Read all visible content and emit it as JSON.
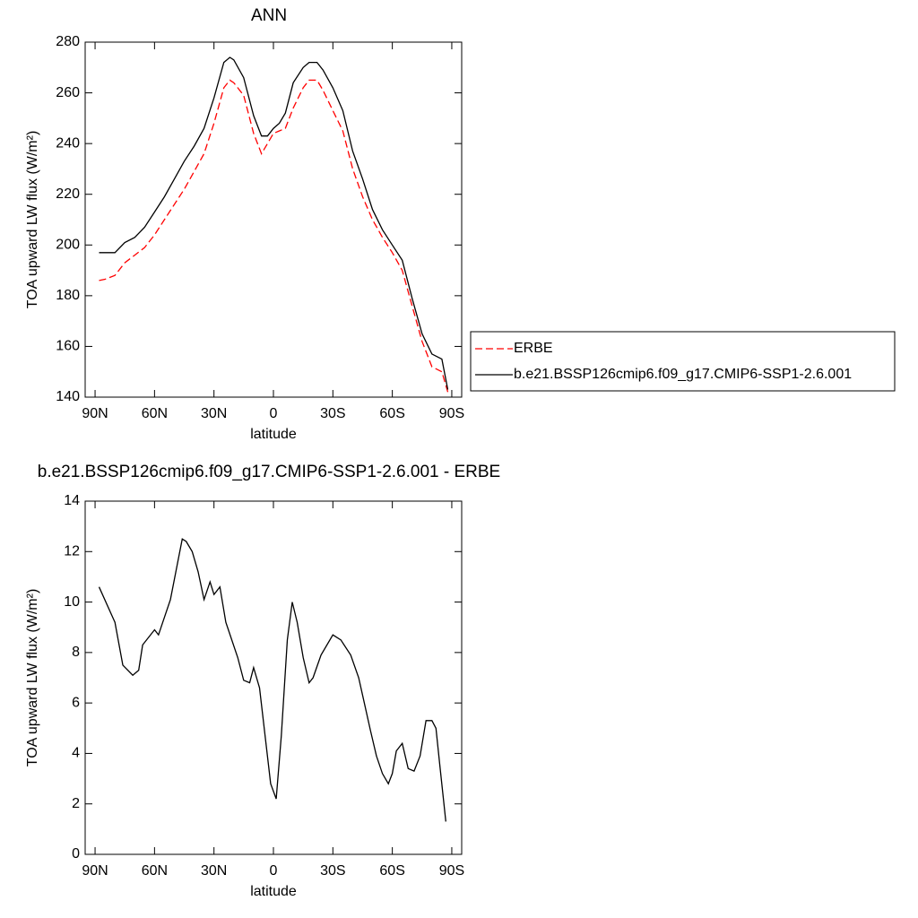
{
  "chart_data": [
    {
      "type": "line",
      "title": "ANN",
      "xlabel": "latitude",
      "ylabel": "TOA upward LW flux (W/m²)",
      "x": [
        88,
        85,
        80,
        75,
        70,
        65,
        60,
        55,
        50,
        45,
        40,
        35,
        30,
        25,
        22,
        20,
        15,
        10,
        6,
        3,
        0,
        -3,
        -6,
        -10,
        -15,
        -18,
        -22,
        -25,
        -30,
        -35,
        -40,
        -45,
        -50,
        -55,
        -60,
        -65,
        -70,
        -75,
        -80,
        -85,
        -88
      ],
      "series": [
        {
          "name": "ERBE",
          "color": "#ff0000",
          "linestyle": "dashed",
          "values": [
            186,
            186.5,
            188,
            193,
            196,
            199,
            204,
            210,
            216,
            222,
            229,
            236,
            248,
            262,
            265,
            264,
            259,
            244,
            236,
            240,
            244,
            245,
            246,
            254,
            262,
            265,
            265,
            261,
            253,
            245,
            230,
            219,
            210,
            203,
            197,
            190,
            176,
            162,
            152,
            150,
            142
          ]
        },
        {
          "name": "b.e21.BSSP126cmip6.f09_g17.CMIP6-SSP1-2.6.001",
          "color": "#000000",
          "linestyle": "solid",
          "values": [
            197,
            197,
            197,
            201,
            203,
            207,
            213,
            219,
            226,
            233,
            239,
            246,
            258,
            272,
            274,
            273,
            266,
            251,
            243,
            243,
            246,
            248,
            252,
            264,
            270,
            272,
            272,
            269,
            262,
            253,
            237,
            226,
            214,
            206,
            200,
            194,
            179,
            165,
            157,
            155,
            143
          ]
        }
      ],
      "xlim": [
        95,
        -95
      ],
      "xticks": [
        {
          "value": 90,
          "label": "90N"
        },
        {
          "value": 60,
          "label": "60N"
        },
        {
          "value": 30,
          "label": "30N"
        },
        0,
        {
          "value": -30,
          "label": "30S"
        },
        {
          "value": -60,
          "label": "60S"
        },
        {
          "value": -90,
          "label": "90S"
        }
      ],
      "ylim": [
        140,
        280
      ],
      "yticks": [
        140,
        160,
        180,
        200,
        220,
        240,
        260,
        280
      ],
      "legend": "right"
    },
    {
      "type": "line",
      "title": "b.e21.BSSP126cmip6.f09_g17.CMIP6-SSP1-2.6.001 - ERBE",
      "xlabel": "latitude",
      "ylabel": "TOA upward LW flux (W/m²)",
      "x": [
        88,
        80,
        76,
        71,
        68,
        66,
        60,
        58,
        52,
        46,
        44,
        41,
        38,
        35,
        32,
        30,
        27,
        24,
        18,
        15,
        12,
        10,
        7,
        1.4,
        -1.4,
        -4,
        -7,
        -9.5,
        -12,
        -15,
        -18,
        -20,
        -24,
        -30,
        -34,
        -39,
        -43,
        -45,
        -49,
        -52,
        -55,
        -58,
        -60,
        -62,
        -65,
        -68,
        -71,
        -74,
        -77,
        -80,
        -82,
        -84,
        -87
      ],
      "values": [
        10.6,
        9.2,
        7.5,
        7.1,
        7.3,
        8.3,
        8.9,
        8.7,
        10.1,
        12.5,
        12.4,
        12.0,
        11.2,
        10.1,
        10.8,
        10.3,
        10.6,
        9.2,
        7.8,
        6.9,
        6.8,
        7.4,
        6.6,
        2.8,
        2.2,
        4.7,
        8.5,
        10.0,
        9.2,
        7.8,
        6.8,
        7.0,
        7.9,
        8.7,
        8.5,
        7.9,
        7.0,
        6.3,
        4.9,
        3.9,
        3.2,
        2.8,
        3.2,
        4.1,
        4.4,
        3.4,
        3.3,
        3.9,
        5.3,
        5.3,
        5.0,
        3.5,
        1.3
      ],
      "color": "#000000",
      "xlim": [
        95,
        -95
      ],
      "xticks": [
        {
          "value": 90,
          "label": "90N"
        },
        {
          "value": 60,
          "label": "60N"
        },
        {
          "value": 30,
          "label": "30N"
        },
        0,
        {
          "value": -30,
          "label": "30S"
        },
        {
          "value": -60,
          "label": "60S"
        },
        {
          "value": -90,
          "label": "90S"
        }
      ],
      "ylim": [
        0,
        14
      ],
      "yticks": [
        0,
        2,
        4,
        6,
        8,
        10,
        12,
        14
      ]
    }
  ]
}
